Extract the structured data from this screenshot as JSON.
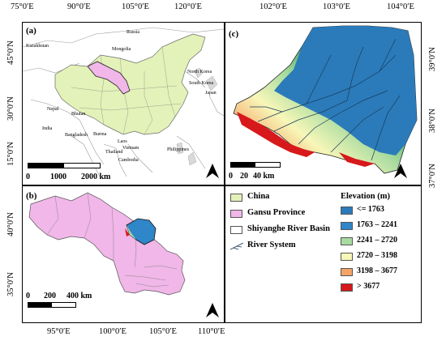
{
  "top_coords": [
    "75°0′E",
    "90°0′E",
    "105°0′E",
    "120°0′E",
    "102°0′E",
    "103°0′E",
    "104°0′E"
  ],
  "bottom_coords": [
    "95°0′E",
    "100°0′E",
    "105°0′E",
    "110°0′E"
  ],
  "panel_a": {
    "label": "(a)",
    "lat_labels": [
      "45°0′N",
      "30°0′N",
      "15°0′N"
    ],
    "countries": [
      "Russia",
      "Kazakhstan",
      "Mongolia",
      "North Korea",
      "South Korea",
      "Japan",
      "Nepal",
      "Bhutan",
      "Bangladesh",
      "India",
      "Burma",
      "Laos",
      "Vietnam",
      "Thailand",
      "Cambodia",
      "Philippines"
    ],
    "scale": [
      "0",
      "1000",
      "2000 km"
    ]
  },
  "panel_b": {
    "label": "(b)",
    "lat_labels": [
      "40°0′N",
      "35°0′N"
    ],
    "scale": [
      "0",
      "200",
      "400 km"
    ]
  },
  "panel_c": {
    "label": "(c)",
    "lat_labels": [
      "39°0′N",
      "38°0′N",
      "37°0′N"
    ],
    "scale": [
      "0",
      "20",
      "40 km"
    ]
  },
  "legend": {
    "items": [
      {
        "label": "China",
        "color": "#e3f2b8"
      },
      {
        "label": "Gansu Province",
        "color": "#f0b7e8"
      },
      {
        "label": "Shiyanghe River Basin",
        "color": "#ffffff"
      },
      {
        "label": "River System",
        "color": "#ffffff"
      }
    ],
    "elevation_title": "Elevation (m)",
    "elevation": [
      {
        "label": "<= 1763",
        "color": "#2b7bba"
      },
      {
        "label": "1763 – 2241",
        "color": "#2f86c9"
      },
      {
        "label": "2241 – 2720",
        "color": "#a8dba0"
      },
      {
        "label": "2720 – 3198",
        "color": "#f7f7b8"
      },
      {
        "label": "3198 – 3677",
        "color": "#f4a466"
      },
      {
        "label": "> 3677",
        "color": "#d7191c"
      }
    ]
  }
}
